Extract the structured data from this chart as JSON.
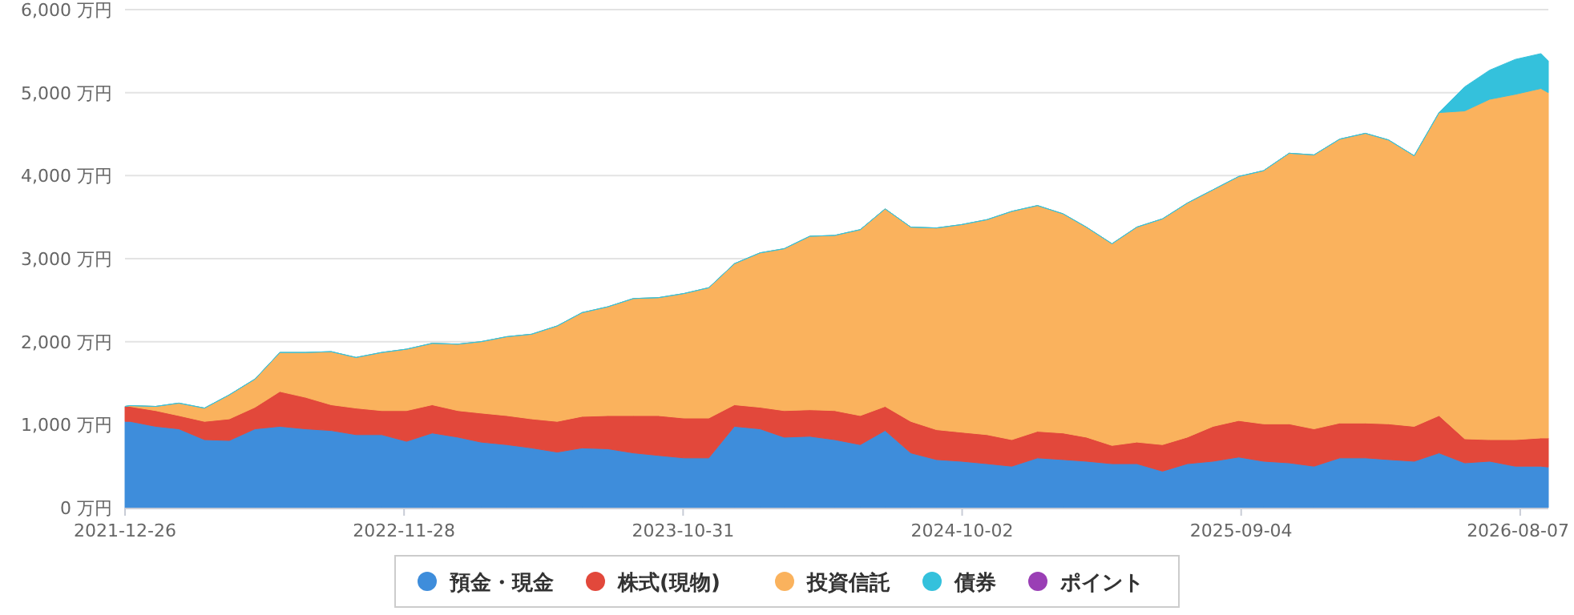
{
  "chart_data": {
    "type": "area",
    "stacked": true,
    "grid": "y",
    "legend": "bottom",
    "x": [
      "2021-12-26",
      "2022-01-01",
      "2022-02-01",
      "2022-03-01",
      "2022-04-01",
      "2022-05-01",
      "2022-06-01",
      "2022-07-01",
      "2022-08-01",
      "2022-09-01",
      "2022-10-01",
      "2022-11-01",
      "2022-12-01",
      "2023-01-01",
      "2023-02-01",
      "2023-03-01",
      "2023-04-01",
      "2023-05-01",
      "2023-06-01",
      "2023-07-01",
      "2023-08-01",
      "2023-09-01",
      "2023-10-01",
      "2023-11-01",
      "2023-12-01",
      "2024-01-01",
      "2024-02-01",
      "2024-03-01",
      "2024-04-01",
      "2024-05-01",
      "2024-06-01",
      "2024-07-01",
      "2024-08-01",
      "2024-09-01",
      "2024-10-01",
      "2024-11-01",
      "2024-12-01",
      "2025-01-01",
      "2025-02-01",
      "2025-03-01",
      "2025-04-01",
      "2025-05-01",
      "2025-06-01",
      "2025-07-01",
      "2025-08-01",
      "2025-09-01",
      "2025-10-01",
      "2025-11-01",
      "2025-12-01",
      "2026-01-01",
      "2026-02-01",
      "2026-03-01",
      "2026-04-01",
      "2026-05-01",
      "2026-06-01",
      "2026-07-01",
      "2026-08-01",
      "2026-09-01",
      "2026-09-10"
    ],
    "series": [
      {
        "name": "預金・現金",
        "color": "#3e8ddb",
        "values": [
          1040,
          1040,
          980,
          950,
          820,
          810,
          950,
          980,
          950,
          930,
          880,
          880,
          800,
          900,
          850,
          790,
          760,
          720,
          670,
          720,
          710,
          660,
          630,
          600,
          600,
          980,
          950,
          850,
          860,
          820,
          760,
          930,
          660,
          580,
          560,
          530,
          500,
          600,
          580,
          560,
          530,
          530,
          440,
          530,
          560,
          610,
          560,
          540,
          500,
          600,
          600,
          580,
          560,
          660,
          540,
          560,
          500,
          500,
          490
        ]
      },
      {
        "name": "株式(現物)",
        "color": "#e2483b",
        "values": [
          180,
          180,
          190,
          160,
          220,
          260,
          260,
          420,
          380,
          310,
          320,
          290,
          370,
          340,
          320,
          350,
          350,
          350,
          370,
          380,
          400,
          450,
          480,
          480,
          480,
          260,
          260,
          320,
          320,
          350,
          350,
          290,
          380,
          360,
          350,
          350,
          320,
          320,
          320,
          290,
          220,
          260,
          320,
          320,
          420,
          440,
          450,
          470,
          450,
          420,
          420,
          430,
          420,
          450,
          290,
          260,
          320,
          340,
          350
        ]
      },
      {
        "name": "投資信託",
        "color": "#fab25d",
        "values": [
          0,
          10,
          50,
          150,
          160,
          290,
          340,
          470,
          540,
          640,
          610,
          700,
          740,
          740,
          800,
          860,
          950,
          1020,
          1150,
          1250,
          1310,
          1410,
          1420,
          1500,
          1570,
          1700,
          1860,
          1950,
          2090,
          2110,
          2240,
          2380,
          2340,
          2430,
          2500,
          2590,
          2750,
          2720,
          2640,
          2530,
          2430,
          2590,
          2720,
          2820,
          2850,
          2940,
          3050,
          3260,
          3300,
          3420,
          3490,
          3420,
          3260,
          3650,
          3950,
          4100,
          4160,
          4210,
          4160
        ]
      },
      {
        "name": "債券",
        "color": "#34c1dc",
        "values": [
          0,
          0,
          0,
          0,
          0,
          0,
          0,
          0,
          0,
          0,
          0,
          0,
          0,
          0,
          0,
          0,
          0,
          0,
          0,
          0,
          0,
          0,
          0,
          0,
          0,
          0,
          0,
          0,
          0,
          0,
          0,
          0,
          0,
          0,
          0,
          0,
          0,
          0,
          0,
          0,
          0,
          0,
          0,
          0,
          0,
          0,
          0,
          0,
          0,
          0,
          0,
          0,
          0,
          0,
          290,
          350,
          420,
          420,
          380
        ]
      },
      {
        "name": "ポイント",
        "color": "#9a3fb5",
        "values": [
          null,
          null,
          null,
          null,
          null,
          null,
          null,
          null,
          null,
          null,
          null,
          null,
          null,
          null,
          null,
          null,
          null,
          null,
          null,
          null,
          null,
          null,
          null,
          null,
          null,
          null,
          null,
          null,
          null,
          null,
          null,
          null,
          null,
          null,
          null,
          null,
          null,
          null,
          null,
          null,
          null,
          null,
          null,
          null,
          null,
          null,
          null,
          null,
          null,
          null,
          null,
          null,
          null,
          null,
          null,
          null,
          null,
          null,
          null
        ]
      }
    ],
    "xlim": [
      "2021-12-26",
      "2026-09-10"
    ],
    "xticks": [
      "2021-12-26",
      "2022-11-28",
      "2023-10-31",
      "2024-10-02",
      "2025-09-04",
      "2026-08-07"
    ],
    "ylim": [
      0,
      6000
    ],
    "yticks": [
      {
        "value": 0,
        "label": "0 万円"
      },
      {
        "value": 1000,
        "label": "1,000 万円"
      },
      {
        "value": 2000,
        "label": "2,000 万円"
      },
      {
        "value": 3000,
        "label": "3,000 万円"
      },
      {
        "value": 4000,
        "label": "4,000 万円"
      },
      {
        "value": 5000,
        "label": "5,000 万円"
      },
      {
        "value": 6000,
        "label": "6,000 万円"
      }
    ]
  }
}
